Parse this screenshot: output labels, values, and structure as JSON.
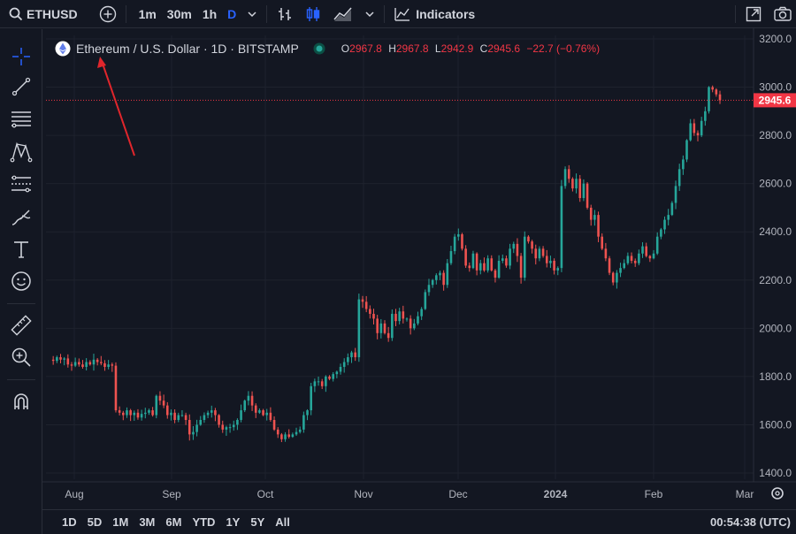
{
  "topbar": {
    "symbol": "ETHUSD",
    "intervals": [
      "1m",
      "30m",
      "1h",
      "D"
    ],
    "indicators_label": "Indicators"
  },
  "legend": {
    "title": "Ethereum / U.S. Dollar · 1D · BITSTAMP",
    "o_label": "O",
    "o_value": "2967.8",
    "h_label": "H",
    "h_value": "2967.8",
    "l_label": "L",
    "l_value": "2942.9",
    "c_label": "C",
    "c_value": "2945.6",
    "change": "−22.7 (−0.76%)"
  },
  "colors": {
    "up": "#26a69a",
    "down": "#ef5350",
    "background": "#131722",
    "grid": "#1e222d",
    "price_line": "#f23645",
    "annotation_arrow": "#e0262c"
  },
  "price_tag": "2945.6",
  "bottombar": {
    "ranges": [
      "1D",
      "5D",
      "1M",
      "3M",
      "6M",
      "YTD",
      "1Y",
      "5Y",
      "All"
    ],
    "clock": "00:54:38 (UTC)"
  },
  "chart_data": {
    "type": "candlestick",
    "x_ticks": [
      "Aug",
      "Sep",
      "Oct",
      "Nov",
      "Dec",
      "2024",
      "Feb",
      "Mar"
    ],
    "y_ticks": [
      "1400.0",
      "1600.0",
      "1800.0",
      "2000.0",
      "2200.0",
      "2400.0",
      "2600.0",
      "2800.0",
      "3000.0",
      "3200.0"
    ],
    "ylim": [
      1360,
      3200
    ],
    "last_price": 2945.6,
    "close_path": [
      1870,
      1865,
      1880,
      1870,
      1875,
      1850,
      1845,
      1860,
      1850,
      1840,
      1860,
      1850,
      1870,
      1860,
      1855,
      1840,
      1850,
      1845,
      1660,
      1650,
      1640,
      1660,
      1640,
      1650,
      1630,
      1645,
      1650,
      1660,
      1640,
      1720,
      1700,
      1680,
      1640,
      1650,
      1620,
      1640,
      1640,
      1620,
      1560,
      1570,
      1600,
      1620,
      1640,
      1650,
      1660,
      1640,
      1600,
      1580,
      1590,
      1590,
      1600,
      1620,
      1660,
      1700,
      1720,
      1680,
      1650,
      1660,
      1640,
      1650,
      1620,
      1580,
      1560,
      1540,
      1560,
      1550,
      1560,
      1570,
      1580,
      1640,
      1660,
      1760,
      1780,
      1780,
      1760,
      1800,
      1790,
      1810,
      1820,
      1840,
      1860,
      1880,
      1900,
      1880,
      2120,
      2110,
      2080,
      2060,
      2040,
      1980,
      2020,
      1980,
      1960,
      2060,
      2030,
      2070,
      2040,
      2040,
      2000,
      2020,
      2050,
      2080,
      2150,
      2180,
      2200,
      2220,
      2230,
      2180,
      2270,
      2320,
      2380,
      2390,
      2330,
      2260,
      2250,
      2310,
      2240,
      2270,
      2240,
      2290,
      2240,
      2210,
      2280,
      2290,
      2260,
      2330,
      2350,
      2300,
      2210,
      2380,
      2360,
      2330,
      2290,
      2330,
      2300,
      2270,
      2280,
      2240,
      2250,
      2590,
      2660,
      2620,
      2580,
      2620,
      2540,
      2600,
      2500,
      2450,
      2470,
      2380,
      2330,
      2290,
      2230,
      2190,
      2230,
      2250,
      2270,
      2300,
      2280,
      2270,
      2310,
      2340,
      2300,
      2290,
      2310,
      2380,
      2410,
      2450,
      2470,
      2520,
      2590,
      2660,
      2700,
      2780,
      2850,
      2810,
      2800,
      2860,
      2900,
      3000,
      2990,
      2970,
      2945.6
    ]
  }
}
